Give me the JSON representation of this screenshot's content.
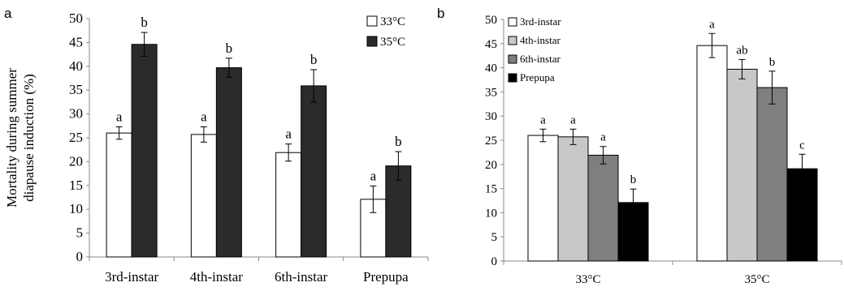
{
  "chart_data": [
    {
      "panel": "a",
      "type": "bar",
      "ylabel": "Mortality during summer diapause induction (%)",
      "ylabel_lines": [
        "Mortality  during summer",
        "diapause induction (%)"
      ],
      "ylim": [
        0,
        50
      ],
      "yticks": [
        0,
        5,
        10,
        15,
        20,
        25,
        30,
        35,
        40,
        45,
        50
      ],
      "categories": [
        "3rd-instar",
        "4th-instar",
        "6th-instar",
        "Prepupa"
      ],
      "legend_position": "top-right",
      "series": [
        {
          "name": "33°C",
          "color": "#ffffff",
          "values": [
            26,
            25.7,
            21.9,
            12.1
          ],
          "errors": [
            1.3,
            1.6,
            1.8,
            2.8
          ],
          "letters": [
            "a",
            "a",
            "a",
            "a"
          ]
        },
        {
          "name": "35°C",
          "color": "#2b2b2b",
          "values": [
            44.6,
            39.7,
            35.9,
            19.1
          ],
          "errors": [
            2.5,
            2,
            3.4,
            3
          ]
        }
      ],
      "letters_35": [
        "b",
        "b",
        "b",
        "b"
      ]
    },
    {
      "panel": "b",
      "type": "bar",
      "ylim": [
        0,
        50
      ],
      "yticks": [
        0,
        5,
        10,
        15,
        20,
        25,
        30,
        35,
        40,
        45,
        50
      ],
      "categories": [
        "33°C",
        "35°C"
      ],
      "legend_position": "top-left",
      "series": [
        {
          "name": "3rd-instar",
          "color": "#ffffff",
          "values": [
            26,
            44.6
          ],
          "errors": [
            1.3,
            2.5
          ],
          "letters": [
            "a",
            "a"
          ]
        },
        {
          "name": "4th-instar",
          "color": "#c8c8c8",
          "values": [
            25.7,
            39.7
          ],
          "errors": [
            1.6,
            2
          ],
          "letters": [
            "a",
            "ab"
          ]
        },
        {
          "name": "6th-instar",
          "color": "#7f7f7f",
          "values": [
            21.9,
            35.9
          ],
          "errors": [
            1.8,
            3.4
          ],
          "letters": [
            "a",
            "b"
          ]
        },
        {
          "name": "Prepupa",
          "color": "#000000",
          "values": [
            12.1,
            19.1
          ],
          "errors": [
            2.8,
            3
          ],
          "letters": [
            "b",
            "c"
          ]
        }
      ]
    }
  ]
}
